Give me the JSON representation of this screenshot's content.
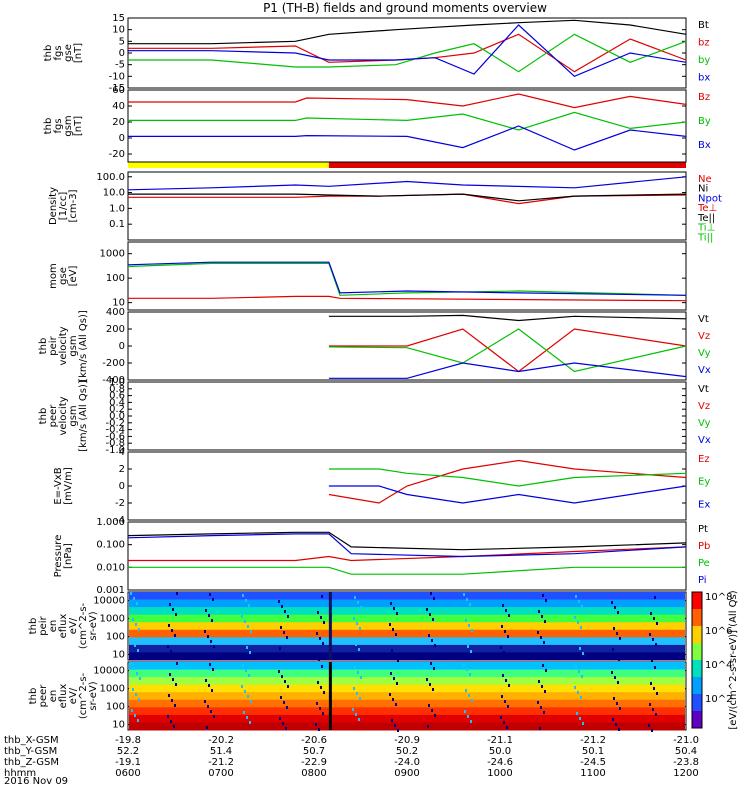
{
  "title": "P1 (TH-B) fields and ground moments overview",
  "date_label": "2016 Nov 09",
  "colors": {
    "black": "#000000",
    "red": "#e00000",
    "green": "#00c000",
    "blue": "#0000e0",
    "yellow": "#ffff00"
  },
  "chart_data": [
    {
      "type": "line",
      "key": "fgs_gse",
      "ylabel": [
        "thb",
        "fgs",
        "gse",
        "[nT]"
      ],
      "ylim": [
        -15,
        15
      ],
      "yticks": [
        "15",
        "10",
        "5",
        "0",
        "-5",
        "-10",
        "-15"
      ],
      "series": [
        {
          "name": "Bt",
          "color": "red_black",
          "x": [
            0,
            0.15,
            0.3,
            0.36,
            0.48,
            0.55,
            0.62,
            0.7,
            0.8,
            0.9,
            1.0
          ],
          "y": [
            4,
            4,
            5,
            8,
            10,
            11,
            12,
            13,
            14,
            12,
            8
          ]
        },
        {
          "name": "bz",
          "color": "red",
          "x": [
            0,
            0.15,
            0.3,
            0.36,
            0.48,
            0.55,
            0.62,
            0.7,
            0.8,
            0.9,
            1.0
          ],
          "y": [
            2,
            2,
            3,
            -4,
            -3,
            -2,
            0,
            8,
            -8,
            6,
            -3
          ]
        },
        {
          "name": "by",
          "color": "green",
          "x": [
            0,
            0.15,
            0.3,
            0.36,
            0.48,
            0.55,
            0.62,
            0.7,
            0.8,
            0.9,
            1.0
          ],
          "y": [
            -3,
            -3,
            -6,
            -6,
            -5,
            0,
            4,
            -8,
            8,
            -4,
            5
          ]
        },
        {
          "name": "bx",
          "color": "blue",
          "x": [
            0,
            0.15,
            0.3,
            0.36,
            0.48,
            0.55,
            0.62,
            0.7,
            0.8,
            0.9,
            1.0
          ],
          "y": [
            1,
            1,
            0,
            -3,
            -3,
            -2,
            -9,
            12,
            -10,
            0,
            -4
          ]
        }
      ],
      "legend": [
        {
          "label": "Bt",
          "color": "black"
        },
        {
          "label": "bz",
          "color": "red"
        },
        {
          "label": "by",
          "color": "green"
        },
        {
          "label": "bx",
          "color": "blue"
        }
      ]
    },
    {
      "type": "line",
      "key": "fgs_gsm",
      "ylabel": [
        "thb",
        "fgs",
        "gsm",
        "[nT]"
      ],
      "ylim": [
        -30,
        60
      ],
      "yticks": [
        "60",
        "40",
        "20",
        "0",
        "-20"
      ],
      "series": [
        {
          "name": "Bz",
          "color": "red",
          "x": [
            0,
            0.3,
            0.32,
            0.5,
            0.6,
            0.7,
            0.8,
            0.9,
            1.0
          ],
          "y": [
            45,
            45,
            50,
            48,
            40,
            55,
            38,
            52,
            42
          ]
        },
        {
          "name": "By",
          "color": "green",
          "x": [
            0,
            0.3,
            0.32,
            0.5,
            0.6,
            0.7,
            0.8,
            0.9,
            1.0
          ],
          "y": [
            22,
            22,
            25,
            22,
            30,
            10,
            32,
            12,
            20
          ]
        },
        {
          "name": "Bx",
          "color": "blue",
          "x": [
            0,
            0.3,
            0.32,
            0.5,
            0.6,
            0.7,
            0.8,
            0.9,
            1.0
          ],
          "y": [
            2,
            2,
            3,
            2,
            -12,
            15,
            -15,
            10,
            2
          ]
        }
      ],
      "legend": [
        {
          "label": "Bz",
          "color": "red"
        },
        {
          "label": "By",
          "color": "green"
        },
        {
          "label": "Bx",
          "color": "blue"
        }
      ]
    },
    {
      "type": "line",
      "key": "density",
      "ylabel": [
        "Density",
        "[1/cc]",
        "[cm-3]"
      ],
      "log": true,
      "ylim": [
        0.01,
        200
      ],
      "yticks": [
        "100.0",
        "10.0",
        "1.0",
        "0.1"
      ],
      "series": [
        {
          "name": "Ne",
          "color": "red",
          "x": [
            0,
            0.3,
            0.36,
            0.45,
            0.6,
            0.7,
            0.8,
            1.0
          ],
          "y": [
            5,
            5,
            6,
            6,
            8,
            2,
            6,
            7
          ]
        },
        {
          "name": "Ni",
          "color": "black",
          "x": [
            0,
            0.3,
            0.36,
            0.45,
            0.6,
            0.7,
            0.8,
            1.0
          ],
          "y": [
            8,
            8,
            7,
            6,
            8,
            3,
            6,
            8
          ]
        },
        {
          "name": "Npot",
          "color": "blue",
          "x": [
            0,
            0.15,
            0.3,
            0.36,
            0.5,
            0.6,
            0.8,
            1.0
          ],
          "y": [
            15,
            20,
            30,
            25,
            50,
            30,
            20,
            100
          ]
        }
      ],
      "legend": [
        {
          "label": "Ne",
          "color": "red"
        },
        {
          "label": "Ni",
          "color": "black"
        },
        {
          "label": "Npot",
          "color": "blue"
        },
        {
          "label": "Te⊥",
          "color": "red"
        },
        {
          "label": "Te||",
          "color": "black"
        },
        {
          "label": "Ti⊥",
          "color": "green"
        },
        {
          "label": "Ti||",
          "color": "green"
        }
      ]
    },
    {
      "type": "line",
      "key": "temperature",
      "ylabel": [
        "mom",
        "gse",
        "[eV]"
      ],
      "log": true,
      "ylim": [
        5,
        3000
      ],
      "yticks": [
        "1000",
        "100",
        "10"
      ],
      "series": [
        {
          "name": "Te⊥",
          "color": "red",
          "x": [
            0,
            0.15,
            0.3,
            0.36,
            0.38,
            1.0
          ],
          "y": [
            15,
            15,
            18,
            18,
            15,
            12
          ]
        },
        {
          "name": "Ti⊥",
          "color": "green",
          "x": [
            0,
            0.15,
            0.3,
            0.36,
            0.38,
            0.5,
            0.7,
            1.0
          ],
          "y": [
            300,
            400,
            400,
            400,
            20,
            25,
            30,
            20
          ]
        },
        {
          "name": "Ti||",
          "color": "blue",
          "x": [
            0,
            0.15,
            0.3,
            0.36,
            0.38,
            0.5,
            0.7,
            1.0
          ],
          "y": [
            350,
            450,
            450,
            450,
            25,
            30,
            25,
            20
          ]
        }
      ],
      "legend": []
    },
    {
      "type": "line",
      "key": "velocity_gsm",
      "ylabel": [
        "thb",
        "peir",
        "velocity",
        "gsm",
        "[km/s (All Qs)]"
      ],
      "ylim": [
        -400,
        400
      ],
      "yticks": [
        "400",
        "200",
        "0",
        "-200",
        "-400"
      ],
      "series": [
        {
          "name": "Vt",
          "color": "black",
          "x": [
            0.36,
            0.5,
            0.6,
            0.7,
            0.8,
            1.0
          ],
          "y": [
            350,
            350,
            360,
            300,
            350,
            320
          ]
        },
        {
          "name": "Vz",
          "color": "red",
          "x": [
            0.36,
            0.5,
            0.6,
            0.7,
            0.8,
            1.0
          ],
          "y": [
            0,
            0,
            200,
            -300,
            200,
            0
          ]
        },
        {
          "name": "Vy",
          "color": "green",
          "x": [
            0.36,
            0.5,
            0.6,
            0.7,
            0.8,
            1.0
          ],
          "y": [
            -10,
            -20,
            -200,
            200,
            -300,
            0
          ]
        },
        {
          "name": "Vx",
          "color": "blue",
          "x": [
            0.36,
            0.5,
            0.6,
            0.7,
            0.8,
            1.0
          ],
          "y": [
            -380,
            -380,
            -200,
            -300,
            -200,
            -360
          ]
        }
      ],
      "legend": [
        {
          "label": "Vt",
          "color": "black"
        },
        {
          "label": "Vz",
          "color": "red"
        },
        {
          "label": "Vy",
          "color": "green"
        },
        {
          "label": "Vx",
          "color": "blue"
        }
      ]
    },
    {
      "type": "line",
      "key": "velocity_empty",
      "ylabel": [
        "thb",
        "peer",
        "velocity",
        "gsm",
        "[km/s (All Qs)]"
      ],
      "ylim": [
        -1,
        1
      ],
      "yticks": [
        "1.0",
        "0.8",
        "0.6",
        "0.4",
        "0.2",
        "0.0",
        "-0.2",
        "-0.4",
        "-0.6",
        "-0.8",
        "-1.0"
      ],
      "series": [],
      "legend": [
        {
          "label": "Vt",
          "color": "black"
        },
        {
          "label": "Vz",
          "color": "red"
        },
        {
          "label": "Vy",
          "color": "green"
        },
        {
          "label": "Vx",
          "color": "blue"
        }
      ]
    },
    {
      "type": "line",
      "key": "efield",
      "ylabel": [
        "E=-VxB",
        "[mV/m]"
      ],
      "ylim": [
        -4,
        4
      ],
      "yticks": [
        "4",
        "2",
        "0",
        "-2",
        "-4"
      ],
      "series": [
        {
          "name": "Ez",
          "color": "red",
          "x": [
            0.36,
            0.45,
            0.5,
            0.6,
            0.7,
            0.8,
            1.0
          ],
          "y": [
            -1,
            -2,
            0,
            2,
            3,
            2,
            1
          ]
        },
        {
          "name": "Ey",
          "color": "green",
          "x": [
            0.36,
            0.45,
            0.5,
            0.6,
            0.7,
            0.8,
            1.0
          ],
          "y": [
            2,
            2,
            1.5,
            1,
            0,
            1,
            1.5
          ]
        },
        {
          "name": "Ex",
          "color": "blue",
          "x": [
            0.36,
            0.45,
            0.5,
            0.6,
            0.7,
            0.8,
            1.0
          ],
          "y": [
            0,
            0,
            -1,
            -2,
            -1,
            -2,
            0
          ]
        }
      ],
      "legend": [
        {
          "label": "Ez",
          "color": "red"
        },
        {
          "label": "Ey",
          "color": "green"
        },
        {
          "label": "Ex",
          "color": "blue"
        }
      ]
    },
    {
      "type": "line",
      "key": "pressure",
      "ylabel": [
        "Pressure",
        "[nPa]"
      ],
      "log": true,
      "ylim": [
        0.001,
        1
      ],
      "yticks": [
        "1.000",
        "0.100",
        "0.010",
        "0.001"
      ],
      "series": [
        {
          "name": "Pt",
          "color": "black",
          "x": [
            0,
            0.15,
            0.3,
            0.36,
            0.4,
            0.6,
            0.8,
            1.0
          ],
          "y": [
            0.25,
            0.3,
            0.35,
            0.35,
            0.08,
            0.06,
            0.08,
            0.12
          ]
        },
        {
          "name": "Pb",
          "color": "red",
          "x": [
            0,
            0.15,
            0.3,
            0.36,
            0.4,
            0.6,
            0.8,
            1.0
          ],
          "y": [
            0.02,
            0.02,
            0.02,
            0.03,
            0.02,
            0.03,
            0.05,
            0.08
          ]
        },
        {
          "name": "Pe",
          "color": "green",
          "x": [
            0,
            0.15,
            0.3,
            0.36,
            0.4,
            0.6,
            0.8,
            1.0
          ],
          "y": [
            0.01,
            0.01,
            0.01,
            0.01,
            0.005,
            0.005,
            0.01,
            0.01
          ]
        },
        {
          "name": "Pi",
          "color": "blue",
          "x": [
            0,
            0.15,
            0.3,
            0.36,
            0.4,
            0.6,
            0.8,
            1.0
          ],
          "y": [
            0.2,
            0.25,
            0.3,
            0.3,
            0.04,
            0.03,
            0.04,
            0.08
          ]
        }
      ],
      "legend": [
        {
          "label": "Pt",
          "color": "black"
        },
        {
          "label": "Pb",
          "color": "red"
        },
        {
          "label": "Pe",
          "color": "green"
        },
        {
          "label": "Pi",
          "color": "blue"
        }
      ]
    },
    {
      "type": "heatmap",
      "key": "ion_spectrogram",
      "ylabel": [
        "thb",
        "peir",
        "en",
        "eflux",
        "eV/",
        "(cm^2-s-",
        "sr-eV)"
      ],
      "ylim": [
        5,
        30000
      ],
      "yticks": [
        "10000",
        "1000",
        "100",
        "10"
      ],
      "log": true
    },
    {
      "type": "heatmap",
      "key": "electron_spectrogram",
      "ylabel": [
        "thb",
        "peer",
        "en",
        "eflux",
        "eV/",
        "(cm^2-s-",
        "sr-eV)"
      ],
      "ylim": [
        5,
        30000
      ],
      "yticks": [
        "10000",
        "1000",
        "100",
        "10"
      ],
      "log": true
    }
  ],
  "colorbar": {
    "label": "[eV/(cm^2-s-sr-eV)] (All Qs)",
    "ticks": [
      "10^8",
      "10^6",
      "10^4",
      "10^2"
    ]
  },
  "footer": {
    "rows": [
      {
        "label": "thb_X-GSM",
        "values": [
          "-19.8",
          "-20.2",
          "-20.6",
          "-20.9",
          "-21.1",
          "-21.2",
          "-21.0"
        ]
      },
      {
        "label": "thb_Y-GSM",
        "values": [
          "52.2",
          "51.4",
          "50.7",
          "50.2",
          "50.0",
          "50.1",
          "50.4"
        ]
      },
      {
        "label": "thb_Z-GSM",
        "values": [
          "-19.1",
          "-21.2",
          "-22.9",
          "-24.0",
          "-24.6",
          "-24.5",
          "-23.8"
        ]
      },
      {
        "label": "hhmm",
        "values": [
          "0600",
          "0700",
          "0800",
          "0900",
          "1000",
          "1100",
          "1200"
        ]
      }
    ]
  },
  "bar_regions": {
    "yellow_end": 0.36,
    "red_start": 0.36
  }
}
